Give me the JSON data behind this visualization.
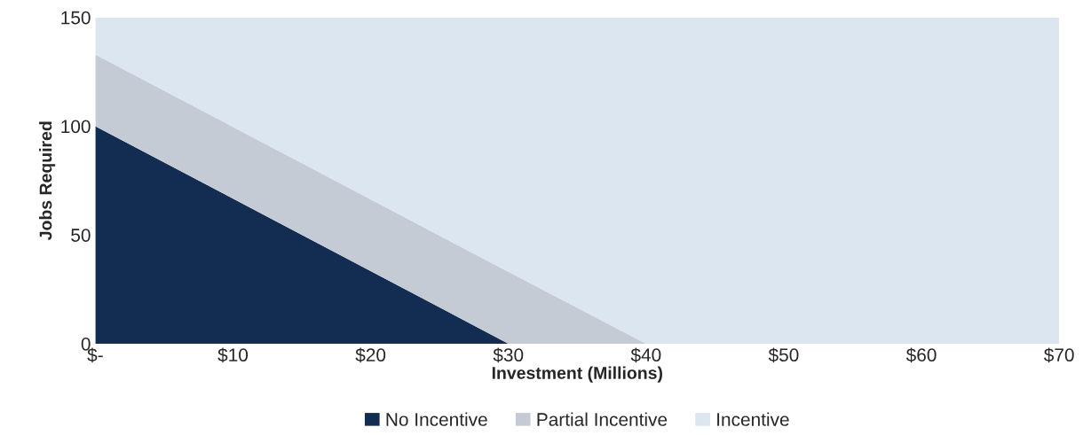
{
  "chart_data": {
    "type": "area",
    "stacked": true,
    "xlabel": "Investment (Millions)",
    "ylabel": "Jobs Required",
    "x": [
      0,
      30,
      40,
      70
    ],
    "series": [
      {
        "name": "No Incentive",
        "color": "#132d52",
        "values": [
          100,
          0,
          0,
          0
        ]
      },
      {
        "name": "Partial Incentive",
        "color": "#c5cbd5",
        "values": [
          33,
          33,
          0,
          0
        ]
      },
      {
        "name": "Incentive",
        "color": "#dce6f0",
        "values": [
          17,
          117,
          150,
          150
        ]
      }
    ],
    "xlim": [
      0,
      70
    ],
    "ylim": [
      0,
      150
    ],
    "xticks": [
      {
        "value": 0,
        "label": "$-"
      },
      {
        "value": 10,
        "label": "$10"
      },
      {
        "value": 20,
        "label": "$20"
      },
      {
        "value": 30,
        "label": "$30"
      },
      {
        "value": 40,
        "label": "$40"
      },
      {
        "value": 50,
        "label": "$50"
      },
      {
        "value": 60,
        "label": "$60"
      },
      {
        "value": 70,
        "label": "$70"
      }
    ],
    "yticks": [
      0,
      50,
      100,
      150
    ],
    "grid": false,
    "legend": "bottom"
  }
}
